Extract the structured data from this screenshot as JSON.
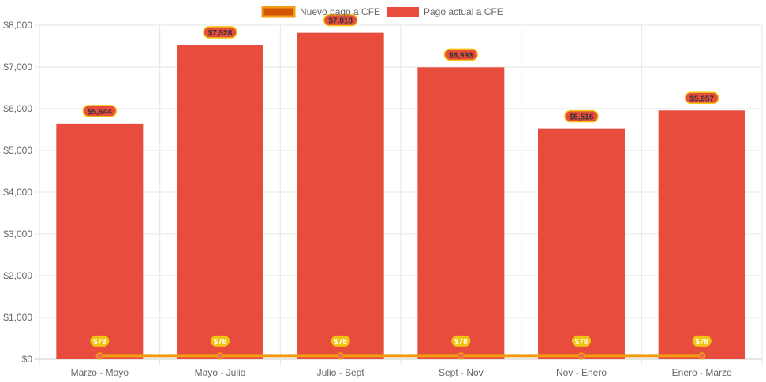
{
  "chart_data": {
    "type": "bar",
    "title": "",
    "xlabel": "",
    "ylabel": "",
    "ylim": [
      0,
      8000
    ],
    "yticks": [
      "$0",
      "$1,000",
      "$2,000",
      "$3,000",
      "$4,000",
      "$5,000",
      "$6,000",
      "$7,000",
      "$8,000"
    ],
    "grid": true,
    "legend_placement": "top-center",
    "categories": [
      "Marzo - Mayo",
      "Mayo - Julio",
      "Julio - Sept",
      "Sept - Nov",
      "Nov - Enero",
      "Enero - Marzo"
    ],
    "series": [
      {
        "name": "Nuevo pago a CFE",
        "type": "line",
        "color": "#f39c12",
        "fill": "#d35400",
        "values": [
          78,
          78,
          78,
          78,
          78,
          78
        ],
        "labels": [
          "$78",
          "$78",
          "$78",
          "$78",
          "$78",
          "$78"
        ]
      },
      {
        "name": "Pago actual a CFE",
        "type": "bar",
        "color": "#e74c3c",
        "values": [
          5644,
          7528,
          7818,
          6993,
          5516,
          5957
        ],
        "labels": [
          "$5,644",
          "$7,528",
          "$7,818",
          "$6,993",
          "$5,516",
          "$5,957"
        ]
      }
    ]
  }
}
